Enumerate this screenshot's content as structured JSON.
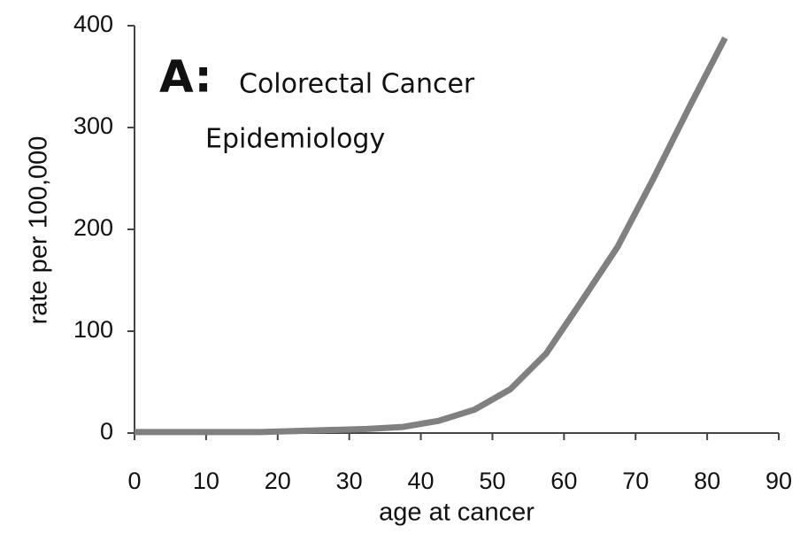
{
  "chart_data": {
    "type": "line",
    "annotations": [
      "A:",
      "Colorectal Cancer",
      "Epidemiology"
    ],
    "x_label": "age at cancer",
    "y_label": "rate per 100,000",
    "series": [
      {
        "name": "colorectal cancer rate",
        "color": "#808080",
        "x": [
          0,
          7.5,
          12.5,
          17.5,
          22.5,
          27.5,
          32.5,
          37.5,
          42.5,
          47.5,
          52.5,
          57.5,
          62.5,
          67.5,
          72.5,
          77.5,
          82.5
        ],
        "values": [
          1,
          1,
          1,
          1,
          2,
          3,
          4,
          6,
          12,
          23,
          43,
          78,
          130,
          183,
          250,
          320,
          388
        ]
      }
    ],
    "xlim": [
      0,
      90
    ],
    "xticks": [
      0,
      10,
      20,
      30,
      40,
      50,
      60,
      70,
      80,
      90
    ],
    "ylim": [
      0,
      400
    ],
    "yticks": [
      0,
      100,
      200,
      300,
      400
    ],
    "grid": false
  }
}
